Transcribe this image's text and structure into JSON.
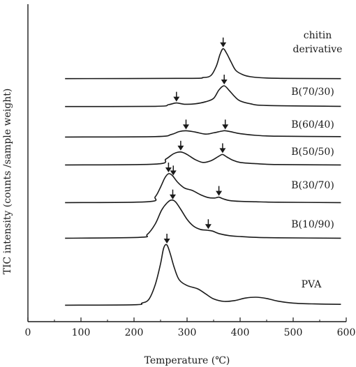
{
  "chart_data": {
    "type": "line",
    "xlabel": "Temperature (℃)",
    "ylabel": "TIC intensity (counts /sample weight)",
    "xlim": [
      0,
      600
    ],
    "x_ticks": [
      "0",
      "100",
      "200",
      "300",
      "400",
      "500",
      "600"
    ],
    "y_ticks_labeled": false,
    "grid": false,
    "legend": "none (series labels placed next to each curve)",
    "line_color": "#1a1a1a",
    "series": [
      {
        "name": "chitin derivative",
        "label_lines": [
          "chitin",
          "derivative"
        ],
        "marker_x": [
          368
        ],
        "x": [
          70,
          300,
          330,
          345,
          355,
          362,
          368,
          375,
          383,
          392,
          405,
          420,
          450,
          500,
          590
        ],
        "y": [
          0.5,
          1.2,
          3,
          8,
          30,
          58,
          72,
          60,
          40,
          20,
          10,
          5,
          2,
          1,
          0.5
        ]
      },
      {
        "name": "B(70/30)",
        "marker_x": [
          280,
          370
        ],
        "x": [
          70,
          240,
          265,
          280,
          295,
          315,
          335,
          350,
          360,
          370,
          380,
          390,
          400,
          420,
          450,
          590
        ],
        "y": [
          0.5,
          1,
          5,
          9,
          6,
          7,
          12,
          20,
          40,
          50,
          38,
          24,
          14,
          7,
          3,
          1
        ]
      },
      {
        "name": "B(60/40)",
        "marker_x": [
          298,
          372
        ],
        "x": [
          70,
          240,
          270,
          285,
          298,
          315,
          335,
          350,
          365,
          372,
          385,
          400,
          430,
          470,
          590
        ],
        "y": [
          1,
          2,
          7,
          14,
          16,
          13,
          8,
          11,
          15,
          16,
          13,
          9,
          5,
          3,
          2
        ]
      },
      {
        "name": "B(50/50)",
        "marker_x": [
          288,
          367
        ],
        "x": [
          70,
          240,
          260,
          275,
          288,
          300,
          315,
          330,
          345,
          360,
          367,
          375,
          385,
          400,
          430,
          470,
          590
        ],
        "y": [
          1,
          3,
          15,
          28,
          32,
          26,
          14,
          7,
          11,
          22,
          26,
          20,
          13,
          7,
          4,
          2,
          1
        ]
      },
      {
        "name": "B(30/70)",
        "marker_x": [
          265,
          274,
          360
        ],
        "x": [
          70,
          225,
          240,
          250,
          258,
          265,
          272,
          282,
          295,
          310,
          325,
          340,
          352,
          360,
          368,
          380,
          400,
          430,
          470,
          590
        ],
        "y": [
          1,
          3,
          15,
          38,
          60,
          70,
          66,
          50,
          36,
          30,
          20,
          13,
          12,
          14,
          10,
          6,
          4,
          3,
          2,
          1
        ]
      },
      {
        "name": "B(10/90)",
        "marker_x": [
          273,
          340
        ],
        "x": [
          70,
          210,
          225,
          240,
          252,
          262,
          270,
          278,
          288,
          300,
          312,
          325,
          338,
          348,
          360,
          380,
          400,
          430,
          470,
          590
        ],
        "y": [
          1,
          3,
          10,
          35,
          68,
          85,
          92,
          88,
          70,
          46,
          30,
          22,
          20,
          18,
          12,
          7,
          5,
          3,
          2,
          1
        ]
      },
      {
        "name": "PVA",
        "marker_x": [
          262
        ],
        "x": [
          70,
          200,
          215,
          228,
          240,
          250,
          256,
          262,
          268,
          276,
          285,
          300,
          320,
          335,
          350,
          370,
          390,
          410,
          430,
          450,
          470,
          500,
          540,
          590
        ],
        "y": [
          1,
          2,
          6,
          15,
          50,
          100,
          138,
          145,
          125,
          90,
          62,
          48,
          40,
          28,
          16,
          10,
          12,
          18,
          20,
          17,
          11,
          6,
          4,
          3
        ]
      }
    ]
  }
}
